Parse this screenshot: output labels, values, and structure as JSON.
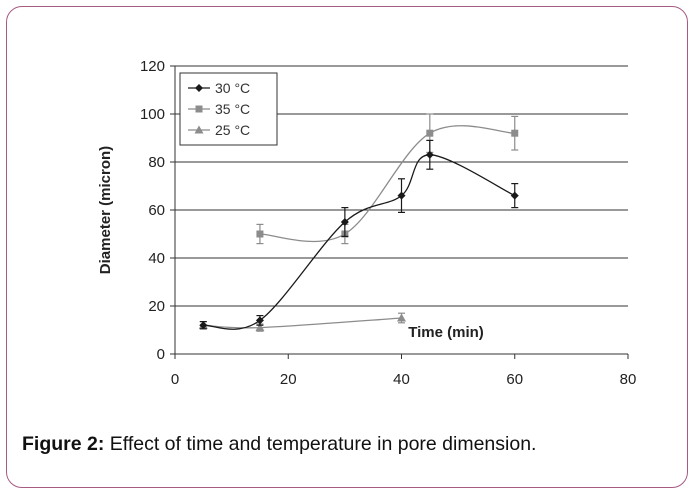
{
  "caption": {
    "label": "Figure 2:",
    "text": " Effect of time and temperature in pore dimension."
  },
  "chart_data": {
    "type": "line",
    "xlabel": "Time (min)",
    "ylabel": "Diameter (micron)",
    "xlim": [
      0,
      80
    ],
    "ylim": [
      0,
      120
    ],
    "xticks": [
      0,
      20,
      40,
      60,
      80
    ],
    "yticks": [
      0,
      20,
      40,
      60,
      80,
      100,
      120
    ],
    "grid": "horizontal",
    "legend_position": "top-left",
    "series": [
      {
        "name": "30 °C",
        "marker": "diamond",
        "color": "#1a1a1a",
        "x": [
          5,
          15,
          30,
          40,
          45,
          60
        ],
        "y": [
          12,
          14,
          55,
          66,
          83,
          66
        ],
        "err": [
          1.5,
          2,
          6,
          7,
          6,
          5
        ]
      },
      {
        "name": "35 °C",
        "marker": "square",
        "color": "#8c8c8c",
        "x": [
          15,
          30,
          45,
          60
        ],
        "y": [
          50,
          50,
          92,
          92
        ],
        "err": [
          4,
          4,
          8,
          7
        ]
      },
      {
        "name": "25 °C",
        "marker": "triangle",
        "color": "#8c8c8c",
        "x": [
          5,
          15,
          40
        ],
        "y": [
          12,
          11,
          15
        ],
        "err": [
          1.5,
          1.5,
          2
        ]
      }
    ]
  }
}
